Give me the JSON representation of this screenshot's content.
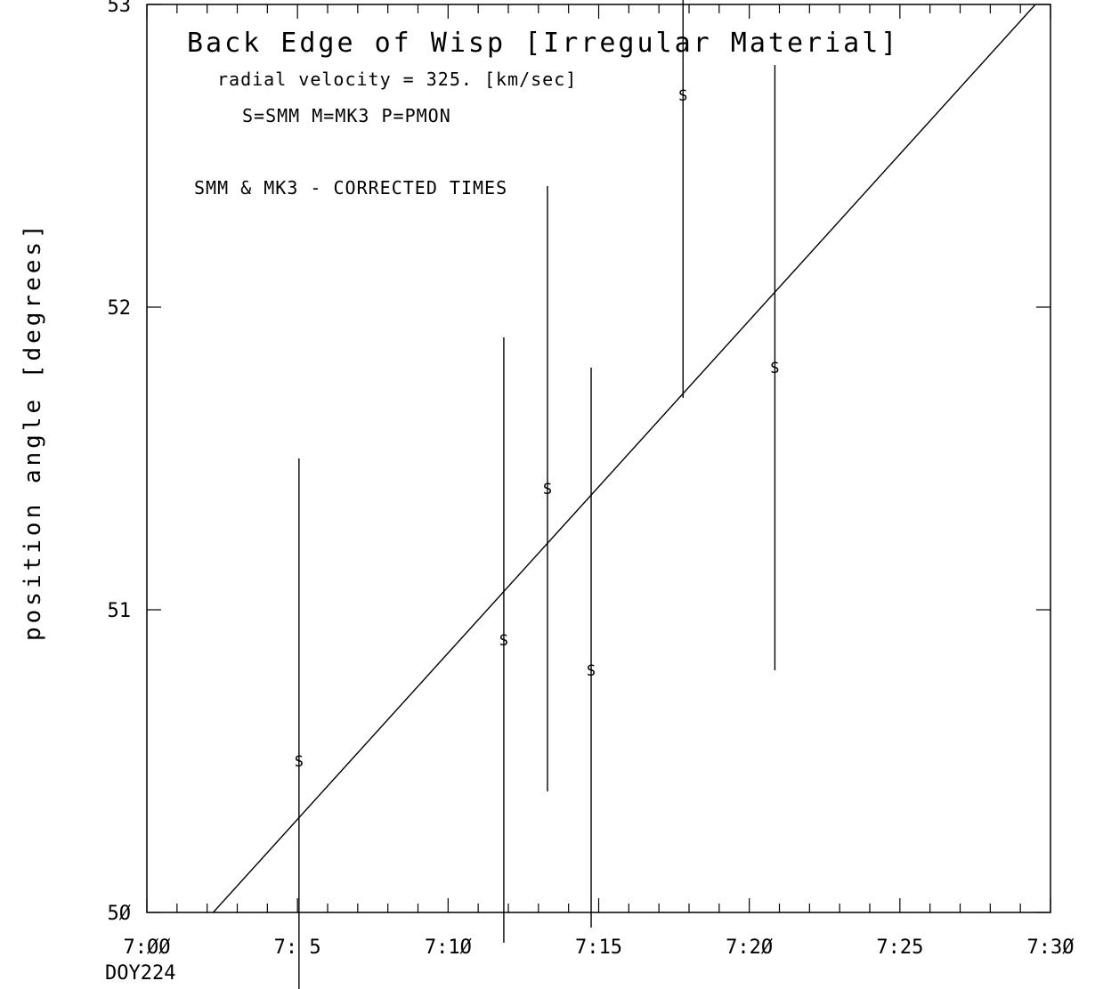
{
  "chart_data": {
    "type": "scatter",
    "title": "Back Edge of Wisp  [Irregular Material]",
    "subtitle_velocity": "radial velocity =  325. [km/sec]",
    "legend_key": "S=SMM  M=MK3  P=PMON",
    "note": "SMM & MK3 - CORRECTED TIMES",
    "ylabel": "position angle [degrees]",
    "x_extra_label": "DOY224",
    "x_unit": "minutes after 7:00",
    "xlim": [
      0,
      30
    ],
    "ylim": [
      50,
      53
    ],
    "x_ticks": [
      {
        "value": 0,
        "label": "7:ØØ"
      },
      {
        "value": 5,
        "label": "7: 5"
      },
      {
        "value": 10,
        "label": "7:1Ø"
      },
      {
        "value": 15,
        "label": "7:15"
      },
      {
        "value": 20,
        "label": "7:2Ø"
      },
      {
        "value": 25,
        "label": "7:25"
      },
      {
        "value": 30,
        "label": "7:3Ø"
      }
    ],
    "y_ticks": [
      {
        "value": 50,
        "label": "5Ø"
      },
      {
        "value": 51,
        "label": "51"
      },
      {
        "value": 52,
        "label": "52"
      },
      {
        "value": 53,
        "label": "53"
      }
    ],
    "series": [
      {
        "marker": "S",
        "points": [
          {
            "x": 5.05,
            "y": 50.5,
            "ylow": 49.15,
            "yhigh": 51.5
          },
          {
            "x": 11.85,
            "y": 50.9,
            "ylow": 49.9,
            "yhigh": 51.9
          },
          {
            "x": 13.3,
            "y": 51.4,
            "ylow": 50.4,
            "yhigh": 52.4
          },
          {
            "x": 14.75,
            "y": 50.8,
            "ylow": 49.95,
            "yhigh": 51.8
          },
          {
            "x": 17.8,
            "y": 52.7,
            "ylow": 51.7,
            "yhigh": 53.7
          },
          {
            "x": 20.85,
            "y": 51.8,
            "ylow": 50.8,
            "yhigh": 52.8
          }
        ]
      }
    ],
    "fit_line": {
      "x": [
        2.2,
        29.5
      ],
      "y": [
        50.0,
        53.0
      ]
    }
  }
}
